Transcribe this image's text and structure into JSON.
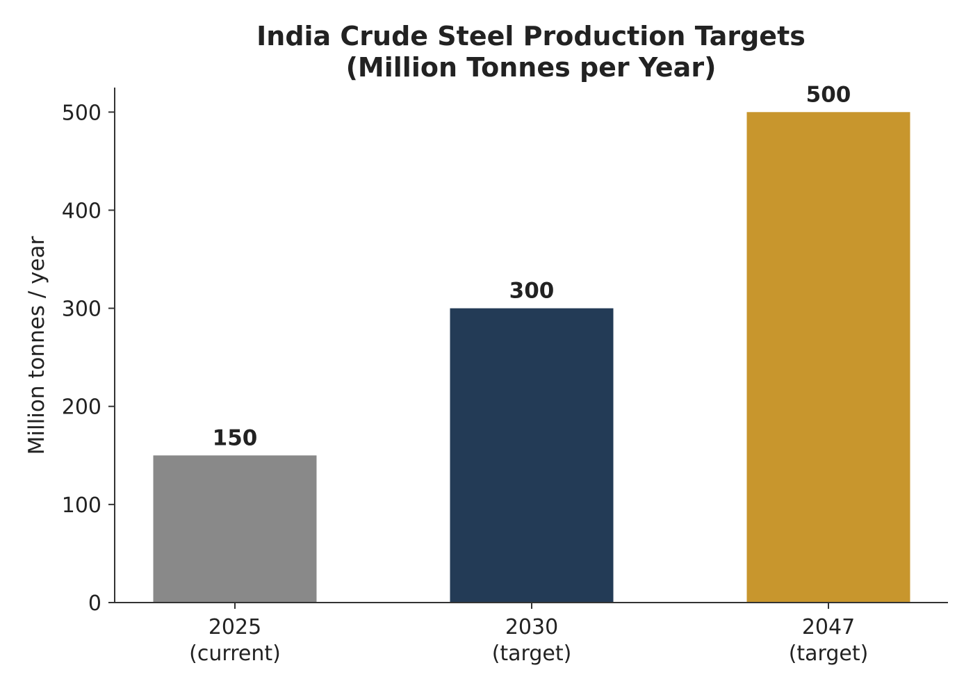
{
  "chart_data": {
    "type": "bar",
    "title": [
      "India Crude Steel Production Targets",
      "(Million Tonnes per Year)"
    ],
    "xlabel": "",
    "ylabel": "Million tonnes / year",
    "categories": [
      [
        "2025",
        "(current)"
      ],
      [
        "2030",
        "(target)"
      ],
      [
        "2047",
        "(target)"
      ]
    ],
    "values": [
      150,
      300,
      500
    ],
    "value_labels": [
      "150",
      "300",
      "500"
    ],
    "colors": [
      "#898989",
      "#233b56",
      "#c8962d"
    ],
    "ylim": [
      0,
      525
    ],
    "yticks": [
      0,
      100,
      200,
      300,
      400,
      500
    ],
    "grid": false,
    "legend": "none"
  }
}
